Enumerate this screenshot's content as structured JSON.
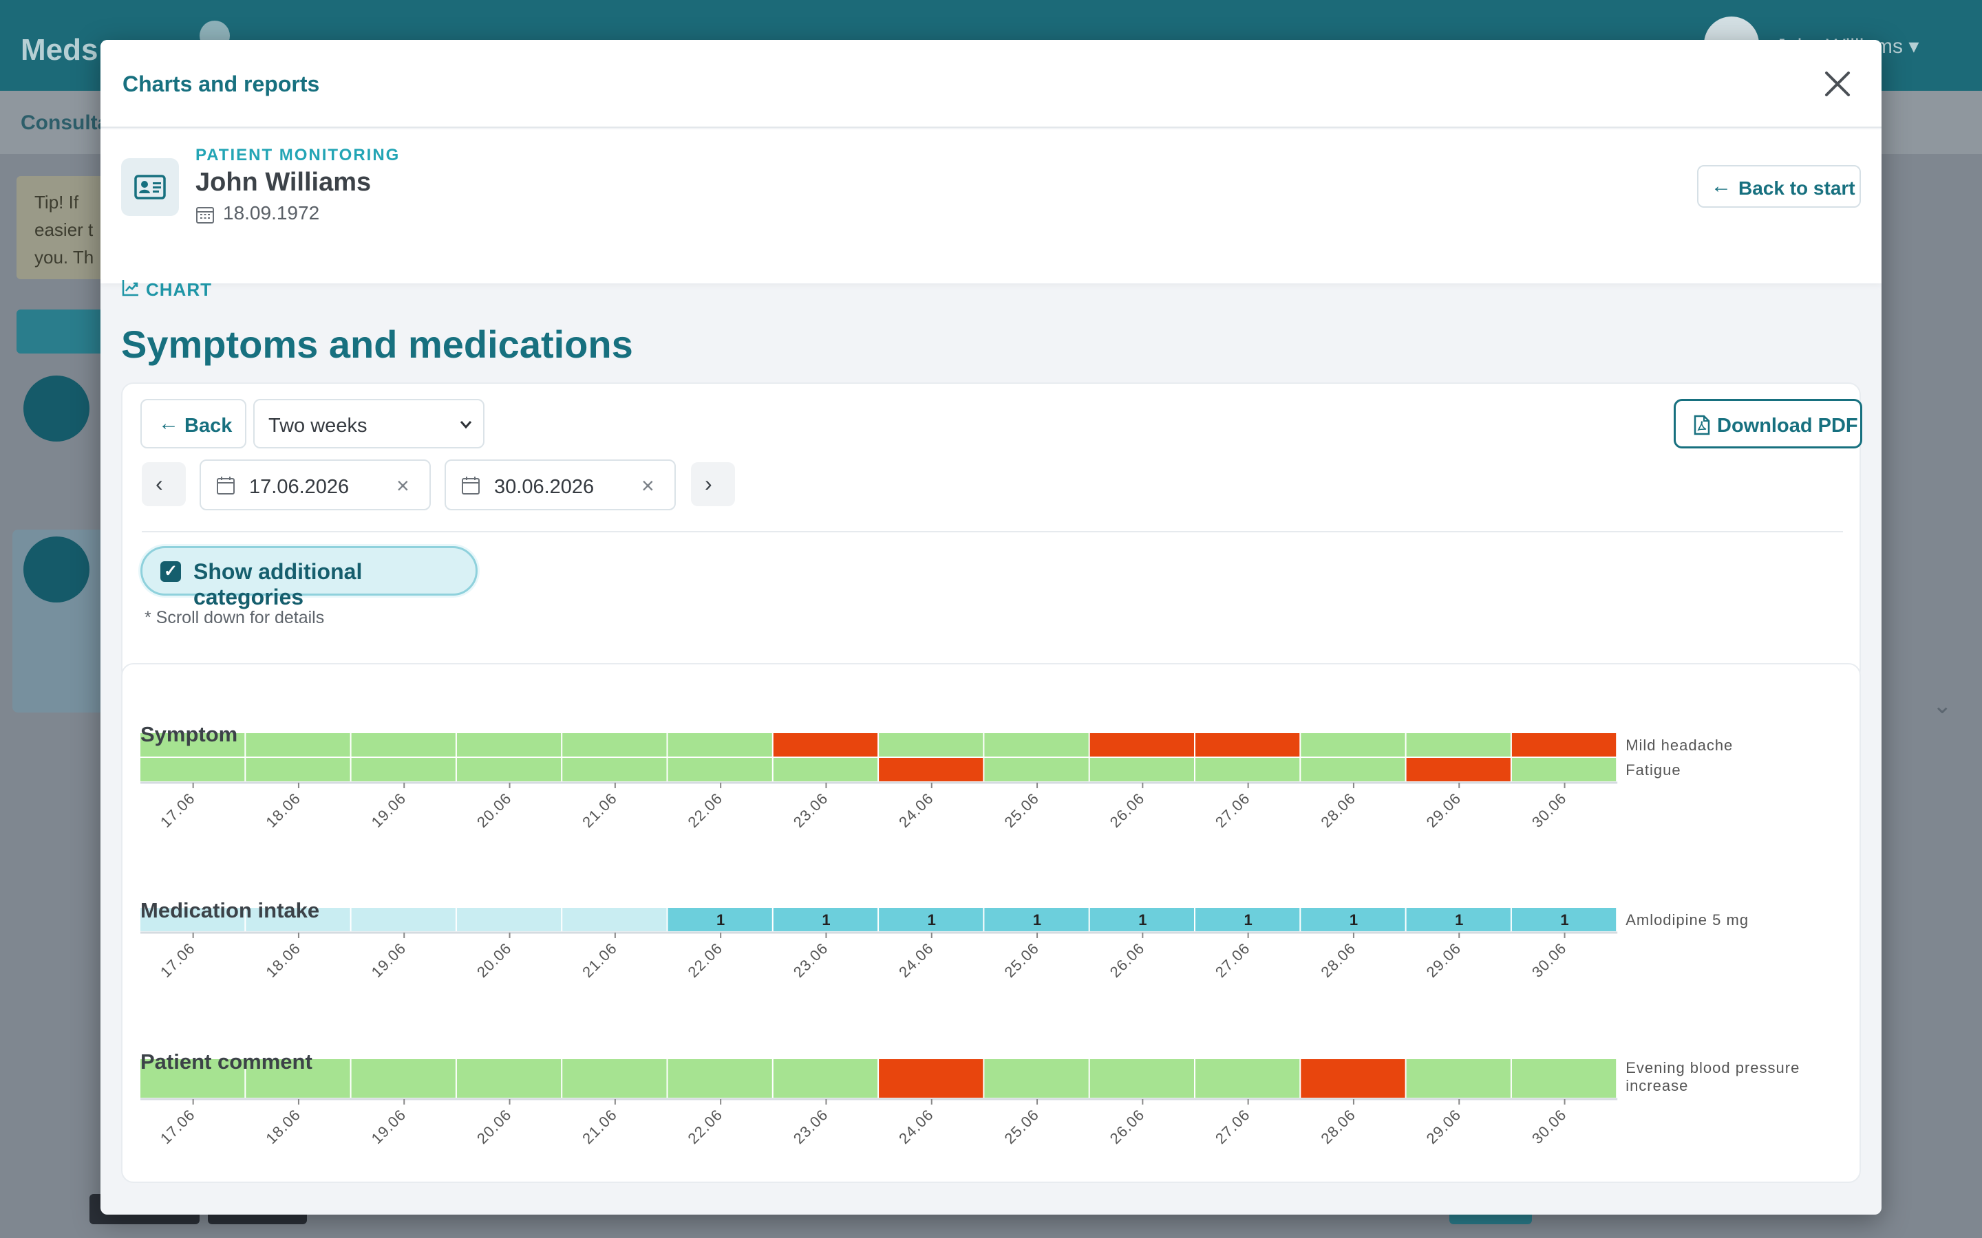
{
  "background": {
    "logo": "Meds",
    "user_name": "John Williams ▾",
    "subtab": "Consultations",
    "tip_text": "Tip! If\neasier t\nyou. Th"
  },
  "modal": {
    "title": "Charts and reports",
    "close_icon": "close-icon"
  },
  "patient": {
    "label": "PATIENT MONITORING",
    "name": "John Williams",
    "dob": "18.09.1972",
    "back_to_start": "Back to start"
  },
  "section": {
    "tag": "CHART",
    "title": "Symptoms and medications"
  },
  "controls": {
    "back_label": "Back",
    "period_selected": "Two weeks",
    "download_label": "Download PDF",
    "date_from": "17.06.2026",
    "date_to": "30.06.2026",
    "show_additional_label": "Show additional categories",
    "show_additional_checked": true,
    "scroll_hint": "* Scroll down for details"
  },
  "colors": {
    "good": "#a6e391",
    "bad": "#e8450d",
    "med_none": "#c9edf2",
    "med_taken": "#6ccfdc",
    "brand": "#17707f"
  },
  "chart_data": [
    {
      "type": "heatmap",
      "title": "Symptom",
      "x": [
        "17.06",
        "18.06",
        "19.06",
        "20.06",
        "21.06",
        "22.06",
        "23.06",
        "24.06",
        "25.06",
        "26.06",
        "27.06",
        "28.06",
        "29.06",
        "30.06"
      ],
      "series": [
        {
          "name": "Mild headache",
          "values": [
            0,
            0,
            0,
            0,
            0,
            0,
            1,
            0,
            0,
            1,
            1,
            0,
            0,
            1
          ]
        },
        {
          "name": "Fatigue",
          "values": [
            0,
            0,
            0,
            0,
            0,
            0,
            0,
            1,
            0,
            0,
            0,
            0,
            1,
            0
          ]
        }
      ]
    },
    {
      "type": "heatmap",
      "title": "Medication intake",
      "x": [
        "17.06",
        "18.06",
        "19.06",
        "20.06",
        "21.06",
        "22.06",
        "23.06",
        "24.06",
        "25.06",
        "26.06",
        "27.06",
        "28.06",
        "29.06",
        "30.06"
      ],
      "series": [
        {
          "name": "Amlodipine 5 mg",
          "values": [
            0,
            0,
            0,
            0,
            0,
            1,
            1,
            1,
            1,
            1,
            1,
            1,
            1,
            1
          ]
        }
      ]
    },
    {
      "type": "heatmap",
      "title": "Patient comment",
      "x": [
        "17.06",
        "18.06",
        "19.06",
        "20.06",
        "21.06",
        "22.06",
        "23.06",
        "24.06",
        "25.06",
        "26.06",
        "27.06",
        "28.06",
        "29.06",
        "30.06"
      ],
      "series": [
        {
          "name": "Evening blood pressure increase",
          "values": [
            0,
            0,
            0,
            0,
            0,
            0,
            0,
            1,
            0,
            0,
            0,
            1,
            0,
            0
          ]
        }
      ]
    }
  ]
}
